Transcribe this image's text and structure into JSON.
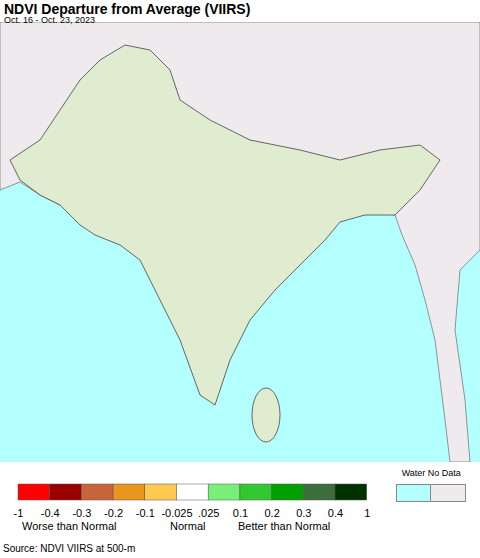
{
  "chart_data": {
    "type": "map",
    "title": "NDVI Departure from Average (VIIRS)",
    "subtitle": "Oct. 16 - Oct. 23, 2023",
    "legend": {
      "bins": [
        -1,
        -0.4,
        -0.3,
        -0.2,
        -0.1,
        -0.025,
        {
          "value": 0.025,
          "label": ".025"
        },
        0.1,
        0.2,
        0.3,
        0.4,
        1
      ],
      "colors": [
        "#ff0000",
        "#990000",
        "#c8643c",
        "#e8961e",
        "#ffc850",
        "#ffffff",
        "#78f078",
        "#32c832",
        "#00a000",
        "#3c6e3c",
        "#003200"
      ],
      "class_labels": [
        "Worse than Normal",
        "Normal",
        "Better than Normal"
      ],
      "special_label": "Water No Data",
      "special_colors": [
        "#b4ffff",
        "#eeeaee"
      ]
    },
    "source": "Source: NDVI VIIRS at 500-m"
  }
}
